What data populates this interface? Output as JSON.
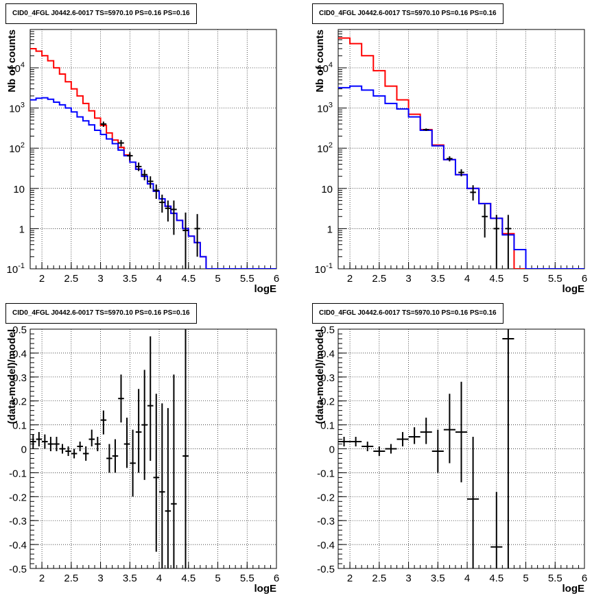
{
  "chart_data": [
    {
      "type": "line",
      "title": "CID0_4FGL J0442.6-0017 TS=5970.10 PS=0.16 PS=0.16",
      "xlabel": "logE",
      "ylabel": "Nb of counts",
      "yscale": "log",
      "xlim": [
        1.8,
        6
      ],
      "ylim": [
        0.1,
        90000
      ],
      "grid": true,
      "xticks": [
        "2",
        "2.5",
        "3",
        "3.5",
        "4",
        "4.5",
        "5",
        "5.5",
        "6"
      ],
      "yticks": [
        "10^{-1}",
        "1",
        "10",
        "10^{2}",
        "10^{3}",
        "10^{4}"
      ],
      "series": [
        {
          "color": "#ff0000",
          "style": "step",
          "edges": [
            1.8,
            1.9,
            2.0,
            2.1,
            2.2,
            2.3,
            2.4,
            2.5,
            2.6,
            2.7,
            2.8,
            2.9,
            3.0,
            3.1,
            3.2,
            3.3,
            3.4,
            3.5,
            3.6,
            3.7,
            3.8,
            3.9,
            4.0,
            4.1,
            4.2,
            4.3,
            4.4,
            4.5,
            4.6,
            4.7,
            4.8,
            4.9,
            5.0,
            6.0
          ],
          "values": [
            30000,
            26000,
            20000,
            15000,
            10000,
            7000,
            4500,
            3000,
            2000,
            1300,
            850,
            560,
            370,
            240,
            160,
            105,
            68,
            45,
            30,
            20,
            13,
            8.5,
            5.5,
            3.6,
            2.4,
            1.6,
            1.0,
            0.65,
            0.45,
            0.2,
            0.1,
            0.1,
            0.1
          ]
        },
        {
          "color": "#0000ff",
          "style": "step",
          "edges": [
            1.8,
            1.9,
            2.0,
            2.1,
            2.2,
            2.3,
            2.4,
            2.5,
            2.6,
            2.7,
            2.8,
            2.9,
            3.0,
            3.1,
            3.2,
            3.3,
            3.4,
            3.5,
            3.6,
            3.7,
            3.8,
            3.9,
            4.0,
            4.1,
            4.2,
            4.3,
            4.4,
            4.5,
            4.6,
            4.7,
            4.8,
            4.9,
            5.0,
            6.0
          ],
          "values": [
            1600,
            1750,
            1800,
            1650,
            1400,
            1200,
            1000,
            800,
            600,
            480,
            380,
            280,
            220,
            170,
            130,
            90,
            65,
            45,
            30,
            20,
            13,
            8.5,
            5.5,
            3.6,
            2.4,
            1.6,
            1.0,
            0.65,
            0.45,
            0.2,
            0.1,
            0.1,
            0.1
          ]
        },
        {
          "color": "#000000",
          "style": "errorbars",
          "x": [
            3.05,
            3.35,
            3.5,
            3.65,
            3.75,
            3.85,
            3.95,
            4.05,
            4.15,
            4.25,
            4.45,
            4.65
          ],
          "y": [
            400,
            135,
            65,
            35,
            22,
            15,
            9,
            4.5,
            3.2,
            3,
            0.9,
            1
          ],
          "ylo": [
            340,
            110,
            50,
            27,
            16,
            10,
            5.5,
            2.5,
            1.5,
            0.7,
            0.1,
            0.2
          ],
          "yhi": [
            460,
            160,
            80,
            44,
            29,
            20,
            12.5,
            7,
            5,
            5,
            2.5,
            2.3
          ]
        }
      ]
    },
    {
      "type": "line",
      "title": "CID0_4FGL J0442.6-0017 TS=5970.10 PS=0.16 PS=0.16",
      "xlabel": "logE",
      "ylabel": "Nb of counts",
      "yscale": "log",
      "xlim": [
        1.8,
        6
      ],
      "ylim": [
        0.1,
        90000
      ],
      "grid": true,
      "xticks": [
        "2",
        "2.5",
        "3",
        "3.5",
        "4",
        "4.5",
        "5",
        "5.5",
        "6"
      ],
      "yticks": [
        "10^{-1}",
        "1",
        "10",
        "10^{2}",
        "10^{3}",
        "10^{4}"
      ],
      "series": [
        {
          "color": "#ff0000",
          "style": "step",
          "edges": [
            1.8,
            2.0,
            2.2,
            2.4,
            2.6,
            2.8,
            3.0,
            3.2,
            3.4,
            3.6,
            3.8,
            4.0,
            4.2,
            4.4,
            4.6,
            4.8,
            5.0,
            6.0
          ],
          "values": [
            55000,
            40000,
            20000,
            8500,
            3500,
            1600,
            700,
            290,
            120,
            52,
            22,
            10,
            4.2,
            1.8,
            0.75,
            0.1,
            0.1
          ]
        },
        {
          "color": "#0000ff",
          "style": "step",
          "edges": [
            1.8,
            2.0,
            2.2,
            2.4,
            2.6,
            2.8,
            3.0,
            3.2,
            3.4,
            3.6,
            3.8,
            4.0,
            4.2,
            4.4,
            4.6,
            4.8,
            5.0,
            6.0
          ],
          "values": [
            3200,
            3500,
            2800,
            2000,
            1300,
            950,
            600,
            280,
            115,
            52,
            22,
            10,
            4.2,
            1.8,
            0.7,
            0.3,
            0.1
          ]
        },
        {
          "color": "#000000",
          "style": "errorbars",
          "x": [
            3.3,
            3.7,
            3.9,
            4.1,
            4.3,
            4.5,
            4.7
          ],
          "y": [
            290,
            55,
            25,
            8,
            2,
            1,
            1
          ],
          "ylo": [
            270,
            47,
            20,
            5,
            0.6,
            0.1,
            0.1
          ],
          "yhi": [
            310,
            63,
            30,
            12,
            4,
            2.2,
            2.2
          ]
        }
      ]
    },
    {
      "type": "scatter",
      "title": "CID0_4FGL J0442.6-0017 TS=5970.10 PS=0.16 PS=0.16",
      "xlabel": "logE",
      "ylabel": "(data-model)/model",
      "xlim": [
        1.8,
        6
      ],
      "ylim": [
        -0.5,
        0.5
      ],
      "grid": true,
      "xticks": [
        "2",
        "2.5",
        "3",
        "3.5",
        "4",
        "4.5",
        "5",
        "5.5",
        "6"
      ],
      "yticks": [
        "-0.5",
        "-0.4",
        "-0.3",
        "-0.2",
        "-0.1",
        "0",
        "0.1",
        "0.2",
        "0.3",
        "0.4",
        "0.5"
      ],
      "series": [
        {
          "color": "#000000",
          "style": "errorbars",
          "xerr": 0.05,
          "x": [
            1.85,
            1.95,
            2.05,
            2.15,
            2.25,
            2.35,
            2.45,
            2.55,
            2.65,
            2.75,
            2.85,
            2.95,
            3.05,
            3.15,
            3.25,
            3.35,
            3.45,
            3.55,
            3.65,
            3.75,
            3.85,
            3.95,
            4.05,
            4.15,
            4.25,
            4.45
          ],
          "y": [
            0.03,
            0.04,
            0.03,
            0.02,
            0.02,
            0.0,
            -0.01,
            -0.02,
            0.01,
            -0.02,
            0.04,
            0.02,
            0.12,
            -0.04,
            -0.03,
            0.21,
            0.02,
            -0.06,
            0.07,
            0.1,
            0.18,
            -0.12,
            -0.18,
            -0.26,
            -0.23,
            -0.03
          ],
          "ylo": [
            0.0,
            0.01,
            0.0,
            -0.01,
            -0.01,
            -0.02,
            -0.03,
            -0.04,
            -0.01,
            -0.05,
            0.01,
            -0.01,
            0.06,
            -0.1,
            -0.1,
            0.11,
            -0.08,
            -0.2,
            -0.1,
            -0.13,
            -0.05,
            -0.43,
            -0.5,
            -0.5,
            -0.5,
            -0.5
          ],
          "yhi": [
            0.06,
            0.07,
            0.06,
            0.05,
            0.05,
            0.02,
            0.01,
            0.0,
            0.03,
            0.01,
            0.08,
            0.05,
            0.16,
            0.02,
            0.04,
            0.31,
            0.13,
            0.08,
            0.25,
            0.33,
            0.47,
            0.23,
            0.19,
            0.17,
            0.31,
            0.5
          ]
        }
      ]
    },
    {
      "type": "scatter",
      "title": "CID0_4FGL J0442.6-0017 TS=5970.10 PS=0.16 PS=0.16",
      "xlabel": "logE",
      "ylabel": "(data-model)/model",
      "xlim": [
        1.8,
        6
      ],
      "ylim": [
        -0.5,
        0.5
      ],
      "grid": true,
      "xticks": [
        "2",
        "2.5",
        "3",
        "3.5",
        "4",
        "4.5",
        "5",
        "5.5",
        "6"
      ],
      "yticks": [
        "-0.5",
        "-0.4",
        "-0.3",
        "-0.2",
        "-0.1",
        "0",
        "0.1",
        "0.2",
        "0.3",
        "0.4",
        "0.5"
      ],
      "series": [
        {
          "color": "#000000",
          "style": "errorbars",
          "xerr": 0.1,
          "x": [
            1.9,
            2.1,
            2.3,
            2.5,
            2.7,
            2.9,
            3.1,
            3.3,
            3.5,
            3.7,
            3.9,
            4.1,
            4.5,
            4.7
          ],
          "y": [
            0.03,
            0.03,
            0.01,
            -0.01,
            0.0,
            0.04,
            0.05,
            0.07,
            -0.01,
            0.08,
            0.07,
            -0.21,
            -0.41,
            0.46
          ],
          "ylo": [
            0.01,
            0.01,
            -0.01,
            -0.03,
            -0.02,
            0.01,
            0.02,
            0.02,
            -0.1,
            -0.06,
            -0.14,
            -0.5,
            -0.5,
            -0.5
          ],
          "yhi": [
            0.05,
            0.05,
            0.03,
            0.01,
            0.02,
            0.07,
            0.09,
            0.13,
            0.08,
            0.23,
            0.28,
            0.05,
            -0.18,
            0.5
          ]
        }
      ]
    }
  ]
}
